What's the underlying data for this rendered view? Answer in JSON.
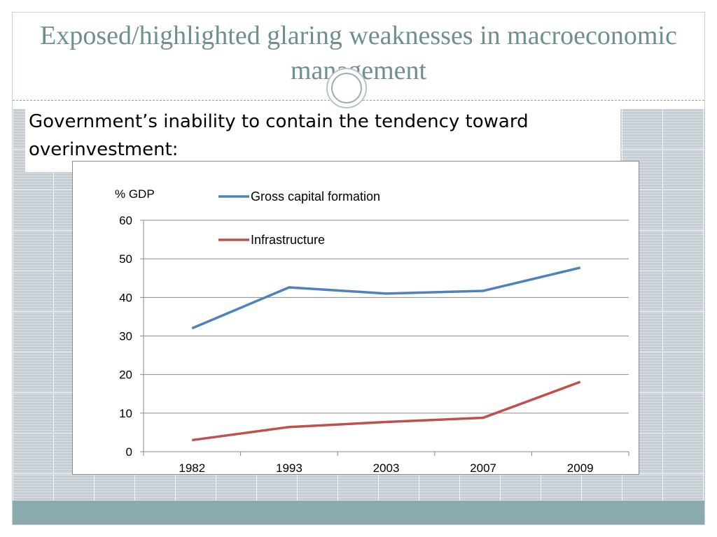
{
  "slide": {
    "title": "Exposed/highlighted glaring weaknesses in macroeconomic management",
    "bullet": "Government’s inability to contain the tendency toward overinvestment:"
  },
  "colors": {
    "title": "#6f8f8f",
    "bottom_bar": "#8aabad",
    "series_gross": "#4f81bd",
    "series_infra": "#c0504d"
  },
  "chart_data": {
    "type": "line",
    "ylabel": "% GDP",
    "xlabel": "",
    "categories": [
      "1982",
      "1993",
      "2003",
      "2007",
      "2009"
    ],
    "ylim": [
      0,
      60
    ],
    "yticks": [
      0,
      10,
      20,
      30,
      40,
      50,
      60
    ],
    "grid": true,
    "legend_position": "top-left inside",
    "series": [
      {
        "name": "Gross capital formation",
        "values": [
          32,
          42.6,
          41,
          41.7,
          47.7
        ],
        "color": "#4f81bd"
      },
      {
        "name": "Infrastructure",
        "values": [
          3,
          6.4,
          7.7,
          8.8,
          18.1
        ],
        "color": "#c0504d"
      }
    ]
  }
}
